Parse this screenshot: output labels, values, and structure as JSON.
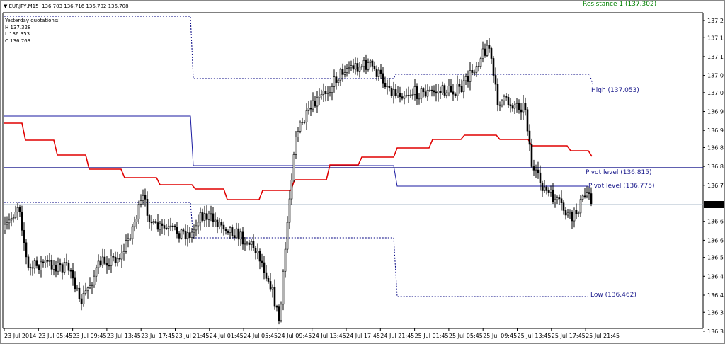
{
  "header": {
    "symbol": "EURJPY,M15",
    "ohlc": "136.703 136.716 136.702 136.708"
  },
  "info": {
    "title": "Yesterday quotations:",
    "high": "H 137.328",
    "low": "L 136.353",
    "close": "C 136.763"
  },
  "levels": {
    "resistance": "Resistance 1 (137.302)",
    "high": "High (137.053)",
    "pivot1": "Pivot level (136.815)",
    "pivot2": "Pivot level (136.775)",
    "low": "Low (136.462)"
  },
  "price_axis": [
    "137.240",
    "137.190",
    "137.135",
    "137.080",
    "137.030",
    "136.975",
    "136.920",
    "136.870",
    "136.815",
    "136.760",
    "136.655",
    "136.600",
    "136.550",
    "136.495",
    "136.440",
    "136.390",
    "136.335"
  ],
  "current_price": "136.708",
  "time_axis": [
    "23 Jul 2014",
    "23 Jul 05:45",
    "23 Jul 09:45",
    "23 Jul 13:45",
    "23 Jul 17:45",
    "23 Jul 21:45",
    "24 Jul 01:45",
    "24 Jul 05:45",
    "24 Jul 09:45",
    "24 Jul 13:45",
    "24 Jul 17:45",
    "24 Jul 21:45",
    "25 Jul 01:45",
    "25 Jul 05:45",
    "25 Jul 09:45",
    "25 Jul 13:45",
    "25 Jul 17:45",
    "25 Jul 21:45"
  ],
  "colors": {
    "pivot_ma": "#e00000",
    "pivot_line": "#000080",
    "level_text": "#1a1a8c",
    "resistance_text": "#008000",
    "price_line": "#a8b8c8"
  }
}
